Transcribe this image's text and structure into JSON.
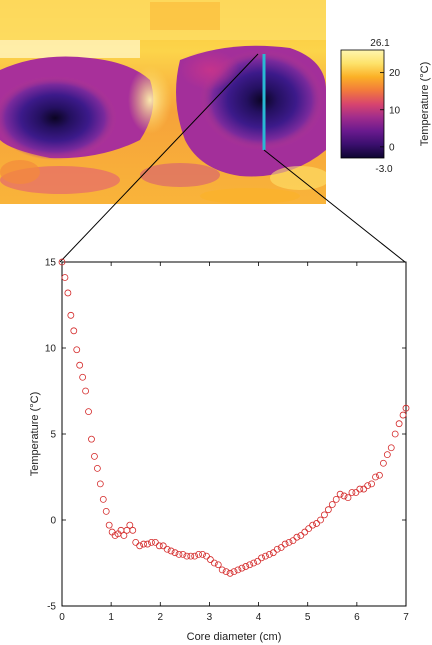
{
  "colorbar": {
    "max_label": "26.1",
    "min_label": "-3.0",
    "ticks": [
      {
        "value": 20,
        "label": "20"
      },
      {
        "value": 10,
        "label": "10"
      },
      {
        "value": 0,
        "label": "0"
      }
    ],
    "label": "Temperature (°C)",
    "range": [
      -3.0,
      26.1
    ],
    "colormap": [
      "#0d0530",
      "#3a0f6e",
      "#6a1a8e",
      "#a02c8c",
      "#d8456e",
      "#f27a3c",
      "#fbb026",
      "#fde26a",
      "#fff6b0"
    ]
  },
  "thermal_image": {
    "profile_line_color": "#29b8d4"
  },
  "chart_data": {
    "type": "scatter",
    "xlabel": "Core diameter (cm)",
    "ylabel": "Temperature (°C)",
    "xlim": [
      0,
      7
    ],
    "ylim": [
      -5,
      15
    ],
    "xticks": [
      "0",
      "1",
      "2",
      "3",
      "4",
      "5",
      "6",
      "7"
    ],
    "yticks": [
      "15",
      "10",
      "5",
      "0",
      "-5"
    ],
    "marker_color": "#d42a2a",
    "marker": "open-circle",
    "x": [
      0.0,
      0.06,
      0.12,
      0.18,
      0.24,
      0.3,
      0.36,
      0.42,
      0.48,
      0.54,
      0.6,
      0.66,
      0.72,
      0.78,
      0.84,
      0.9,
      0.96,
      1.02,
      1.08,
      1.14,
      1.2,
      1.26,
      1.32,
      1.38,
      1.44,
      1.5,
      1.58,
      1.66,
      1.74,
      1.82,
      1.9,
      1.98,
      2.06,
      2.14,
      2.22,
      2.3,
      2.38,
      2.46,
      2.54,
      2.62,
      2.7,
      2.78,
      2.86,
      2.94,
      3.02,
      3.1,
      3.18,
      3.26,
      3.34,
      3.42,
      3.5,
      3.58,
      3.66,
      3.74,
      3.82,
      3.9,
      3.98,
      4.06,
      4.14,
      4.22,
      4.3,
      4.38,
      4.46,
      4.54,
      4.62,
      4.7,
      4.78,
      4.86,
      4.94,
      5.02,
      5.1,
      5.18,
      5.26,
      5.34,
      5.42,
      5.5,
      5.58,
      5.66,
      5.74,
      5.82,
      5.9,
      5.98,
      6.06,
      6.14,
      6.22,
      6.3,
      6.38,
      6.46,
      6.54,
      6.62,
      6.7,
      6.78,
      6.86,
      6.94,
      7.0
    ],
    "y": [
      15.0,
      14.1,
      13.2,
      11.9,
      11.0,
      9.9,
      9.0,
      8.3,
      7.5,
      6.3,
      4.7,
      3.7,
      3.0,
      2.1,
      1.2,
      0.5,
      -0.3,
      -0.7,
      -0.9,
      -0.8,
      -0.6,
      -0.9,
      -0.6,
      -0.3,
      -0.6,
      -1.3,
      -1.5,
      -1.4,
      -1.4,
      -1.3,
      -1.3,
      -1.5,
      -1.5,
      -1.7,
      -1.8,
      -1.9,
      -2.0,
      -2.0,
      -2.1,
      -2.1,
      -2.1,
      -2.0,
      -2.0,
      -2.1,
      -2.3,
      -2.5,
      -2.6,
      -2.9,
      -3.0,
      -3.1,
      -3.0,
      -2.9,
      -2.8,
      -2.7,
      -2.6,
      -2.5,
      -2.4,
      -2.2,
      -2.1,
      -2.0,
      -1.9,
      -1.7,
      -1.6,
      -1.4,
      -1.3,
      -1.2,
      -1.0,
      -0.9,
      -0.7,
      -0.5,
      -0.3,
      -0.2,
      0.0,
      0.3,
      0.6,
      0.9,
      1.2,
      1.5,
      1.4,
      1.3,
      1.6,
      1.6,
      1.8,
      1.8,
      2.0,
      2.1,
      2.5,
      2.6,
      3.3,
      3.8,
      4.2,
      5.0,
      5.6,
      6.1,
      6.5
    ]
  }
}
